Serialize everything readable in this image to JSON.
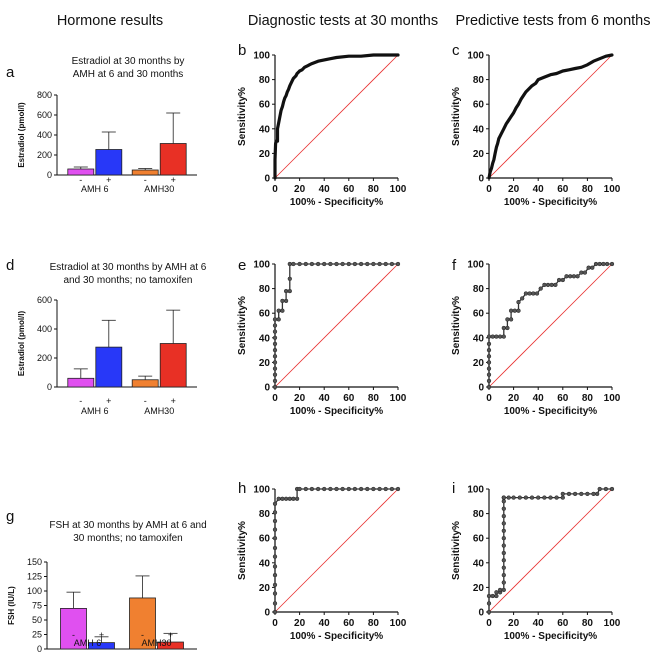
{
  "headers": {
    "col1": "Hormone results",
    "col2": "Diagnostic tests at 30 months",
    "col3": "Predictive tests from 6 months"
  },
  "chart_data": [
    {
      "id": "a",
      "type": "bar",
      "panel_label": "a",
      "title_lines": [
        "Estradiol at 30 months by",
        "AMH at 6 and 30 months"
      ],
      "ylabel": "Estradiol (pmol/l)",
      "ylim": [
        0,
        800
      ],
      "yticks": [
        "0",
        "200",
        "400",
        "600",
        "800"
      ],
      "groups": [
        "AMH 6",
        "AMH30"
      ],
      "bar_signs": [
        "-",
        "+",
        "-",
        "+"
      ],
      "values": [
        60,
        255,
        50,
        315
      ],
      "errors": [
        20,
        175,
        15,
        305
      ],
      "colors": [
        "#e050f0",
        "#2838f8",
        "#f08030",
        "#e83025"
      ]
    },
    {
      "id": "d",
      "type": "bar",
      "panel_label": "d",
      "title_lines": [
        "Estradiol at 30 months by AMH at 6",
        "and 30 months; no tamoxifen"
      ],
      "ylabel": "Estradiol (pmol/l)",
      "ylim": [
        0,
        600
      ],
      "yticks": [
        "0",
        "200",
        "400",
        "600"
      ],
      "groups": [
        "AMH 6",
        "AMH30"
      ],
      "bar_signs": [
        "-",
        "+",
        "-",
        "+"
      ],
      "values": [
        60,
        275,
        50,
        300
      ],
      "errors": [
        65,
        185,
        25,
        230
      ],
      "colors": [
        "#e050f0",
        "#2838f8",
        "#f08030",
        "#e83025"
      ]
    },
    {
      "id": "g",
      "type": "bar",
      "panel_label": "g",
      "title_lines": [
        "FSH at 30 months by AMH at 6 and",
        "30 months; no tamoxifen"
      ],
      "ylabel": "FSH (IU/L)",
      "ylim": [
        0,
        150
      ],
      "yticks": [
        "0",
        "25",
        "50",
        "75",
        "100",
        "125",
        "150"
      ],
      "groups": [
        "AMH 6",
        "AMH30"
      ],
      "bar_signs": [
        "-",
        "+",
        "-",
        "+"
      ],
      "values": [
        70,
        11,
        88,
        12
      ],
      "errors": [
        28,
        10,
        38,
        15
      ],
      "colors": [
        "#e050f0",
        "#2838f8",
        "#f08030",
        "#e83025"
      ]
    },
    {
      "id": "b",
      "type": "line",
      "panel_label": "b",
      "style": "smooth",
      "xlabel": "100% - Specificity%",
      "ylabel": "Sensitivity%",
      "xlim": [
        0,
        100
      ],
      "ylim": [
        0,
        100
      ],
      "ticks": [
        "0",
        "20",
        "40",
        "60",
        "80",
        "100"
      ],
      "x": [
        0,
        0,
        0.5,
        1,
        2,
        2,
        3,
        4,
        5,
        6,
        7,
        8,
        9,
        10,
        11,
        12,
        13,
        14,
        15,
        17,
        18,
        19,
        20,
        22,
        24,
        26,
        28,
        30,
        35,
        40,
        45,
        50,
        60,
        70,
        80,
        90,
        100
      ],
      "y": [
        0,
        15,
        28,
        30,
        30,
        40,
        45,
        50,
        55,
        58,
        62,
        65,
        67,
        70,
        72,
        75,
        77,
        79,
        81,
        83,
        85,
        86,
        87,
        88,
        90,
        91,
        92,
        93,
        95,
        96,
        97,
        98,
        99,
        99,
        100,
        100,
        100
      ]
    },
    {
      "id": "c",
      "type": "line",
      "panel_label": "c",
      "style": "smooth",
      "xlabel": "100% - Specificity%",
      "ylabel": "Sensitivity%",
      "xlim": [
        0,
        100
      ],
      "ylim": [
        0,
        100
      ],
      "ticks": [
        "0",
        "20",
        "40",
        "60",
        "80",
        "100"
      ],
      "x": [
        0,
        1,
        2,
        3,
        4,
        5,
        6,
        7,
        8,
        10,
        12,
        14,
        16,
        18,
        20,
        22,
        24,
        26,
        28,
        30,
        32,
        35,
        38,
        40,
        45,
        50,
        55,
        60,
        65,
        70,
        75,
        80,
        85,
        90,
        95,
        100
      ],
      "y": [
        0,
        5,
        8,
        12,
        15,
        20,
        25,
        28,
        32,
        36,
        40,
        44,
        47,
        50,
        53,
        57,
        60,
        64,
        67,
        70,
        72,
        75,
        77,
        80,
        82,
        84,
        85,
        87,
        88,
        89,
        90,
        92,
        95,
        97,
        99,
        100
      ]
    },
    {
      "id": "e",
      "type": "line",
      "panel_label": "e",
      "style": "dots",
      "xlabel": "100% - Specificity%",
      "ylabel": "Sensitivity%",
      "xlim": [
        0,
        100
      ],
      "ylim": [
        0,
        100
      ],
      "ticks": [
        "0",
        "20",
        "40",
        "60",
        "80",
        "100"
      ],
      "x": [
        0,
        0,
        0,
        0,
        0,
        0,
        0,
        0,
        0,
        0,
        0,
        0,
        3,
        3,
        6,
        6,
        9,
        9,
        12,
        12,
        12,
        15,
        20,
        25,
        30,
        35,
        40,
        45,
        50,
        55,
        60,
        65,
        70,
        75,
        80,
        85,
        90,
        95,
        100
      ],
      "y": [
        0,
        5,
        10,
        15,
        20,
        25,
        30,
        35,
        40,
        45,
        50,
        55,
        55,
        62,
        62,
        70,
        70,
        78,
        78,
        88,
        100,
        100,
        100,
        100,
        100,
        100,
        100,
        100,
        100,
        100,
        100,
        100,
        100,
        100,
        100,
        100,
        100,
        100,
        100
      ]
    },
    {
      "id": "f",
      "type": "line",
      "panel_label": "f",
      "style": "dots",
      "xlabel": "100% - Specificity%",
      "ylabel": "Sensitivity%",
      "xlim": [
        0,
        100
      ],
      "ylim": [
        0,
        100
      ],
      "ticks": [
        "0",
        "20",
        "40",
        "60",
        "80",
        "100"
      ],
      "x": [
        0,
        0,
        0,
        0,
        0,
        0,
        0,
        0,
        0,
        3,
        6,
        9,
        12,
        12,
        15,
        15,
        18,
        18,
        21,
        24,
        24,
        27,
        30,
        33,
        36,
        39,
        42,
        45,
        48,
        51,
        54,
        57,
        60,
        63,
        66,
        69,
        72,
        75,
        78,
        81,
        84,
        87,
        90,
        93,
        96,
        100
      ],
      "y": [
        0,
        5,
        10,
        15,
        20,
        25,
        30,
        35,
        41,
        41,
        41,
        41,
        41,
        48,
        48,
        55,
        55,
        62,
        62,
        62,
        69,
        72,
        76,
        76,
        76,
        76,
        80,
        83,
        83,
        83,
        83,
        87,
        87,
        90,
        90,
        90,
        90,
        93,
        93,
        97,
        97,
        100,
        100,
        100,
        100,
        100
      ]
    },
    {
      "id": "h",
      "type": "line",
      "panel_label": "h",
      "style": "dots",
      "xlabel": "100% - Specificity%",
      "ylabel": "Sensitivity%",
      "xlim": [
        0,
        100
      ],
      "ylim": [
        0,
        100
      ],
      "ticks": [
        "0",
        "20",
        "40",
        "60",
        "80",
        "100"
      ],
      "x": [
        0,
        0,
        0,
        0,
        0,
        0,
        0,
        0,
        0,
        0,
        0,
        0,
        0,
        3,
        6,
        9,
        12,
        15,
        18,
        18,
        20,
        25,
        30,
        35,
        40,
        45,
        50,
        55,
        60,
        65,
        70,
        75,
        80,
        85,
        90,
        95,
        100
      ],
      "y": [
        0,
        7,
        15,
        22,
        30,
        37,
        45,
        52,
        60,
        67,
        74,
        81,
        88,
        92,
        92,
        92,
        92,
        92,
        92,
        100,
        100,
        100,
        100,
        100,
        100,
        100,
        100,
        100,
        100,
        100,
        100,
        100,
        100,
        100,
        100,
        100,
        100
      ]
    },
    {
      "id": "i",
      "type": "line",
      "panel_label": "i",
      "style": "dots",
      "xlabel": "100% - Specificity%",
      "ylabel": "Sensitivity%",
      "xlim": [
        0,
        100
      ],
      "ylim": [
        0,
        100
      ],
      "ticks": [
        "0",
        "20",
        "40",
        "60",
        "80",
        "100"
      ],
      "x": [
        0,
        0,
        0,
        3,
        6,
        6,
        9,
        9,
        12,
        12,
        12,
        12,
        12,
        12,
        12,
        12,
        12,
        12,
        12,
        12,
        12,
        12,
        12,
        16,
        20,
        25,
        30,
        35,
        40,
        45,
        50,
        55,
        60,
        60,
        65,
        70,
        75,
        80,
        85,
        88,
        90,
        95,
        100
      ],
      "y": [
        0,
        7,
        13,
        13,
        13,
        16,
        16,
        18,
        18,
        24,
        30,
        36,
        42,
        48,
        54,
        60,
        66,
        72,
        78,
        84,
        90,
        93,
        93,
        93,
        93,
        93,
        93,
        93,
        93,
        93,
        93,
        93,
        93,
        96,
        96,
        96,
        96,
        96,
        96,
        96,
        100,
        100,
        100
      ]
    }
  ]
}
